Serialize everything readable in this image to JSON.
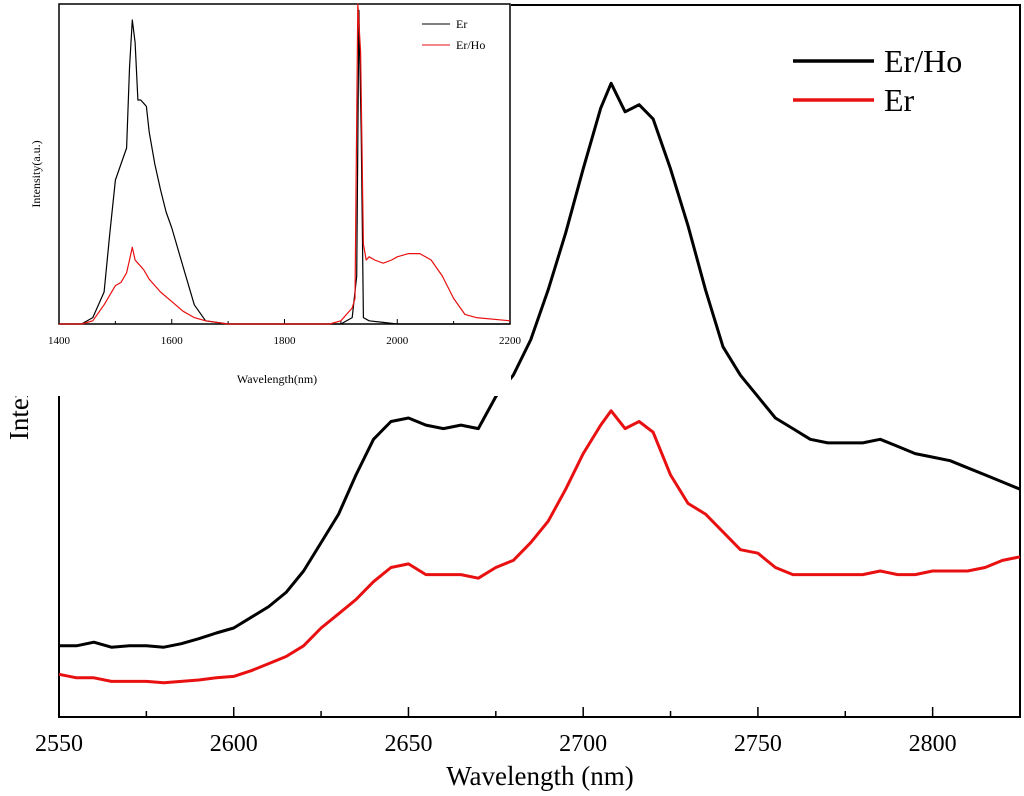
{
  "chart_data": [
    {
      "type": "line",
      "title": "",
      "xlabel": "Wavelength (nm)",
      "ylabel": "Intensity (a.u.)",
      "xlim": [
        2550,
        2825
      ],
      "ylim": [
        0,
        1
      ],
      "xticks": [
        2550,
        2600,
        2650,
        2700,
        2750,
        2800
      ],
      "yticks": [],
      "grid": false,
      "legend": "top-right",
      "series": [
        {
          "name": "Er/Ho",
          "color": "#000000",
          "x": [
            2550,
            2555,
            2560,
            2565,
            2570,
            2575,
            2580,
            2585,
            2590,
            2595,
            2600,
            2605,
            2610,
            2615,
            2620,
            2625,
            2630,
            2635,
            2640,
            2645,
            2650,
            2655,
            2660,
            2665,
            2670,
            2675,
            2680,
            2685,
            2690,
            2695,
            2700,
            2705,
            2708,
            2712,
            2716,
            2720,
            2725,
            2730,
            2735,
            2740,
            2745,
            2750,
            2755,
            2760,
            2765,
            2770,
            2775,
            2780,
            2785,
            2790,
            2795,
            2800,
            2805,
            2810,
            2815,
            2820,
            2825
          ],
          "y": [
            0.1,
            0.1,
            0.105,
            0.098,
            0.1,
            0.1,
            0.098,
            0.103,
            0.11,
            0.118,
            0.125,
            0.14,
            0.155,
            0.175,
            0.205,
            0.245,
            0.285,
            0.34,
            0.39,
            0.415,
            0.42,
            0.41,
            0.405,
            0.41,
            0.405,
            0.45,
            0.48,
            0.53,
            0.6,
            0.68,
            0.77,
            0.855,
            0.89,
            0.85,
            0.86,
            0.84,
            0.77,
            0.69,
            0.6,
            0.52,
            0.48,
            0.45,
            0.42,
            0.405,
            0.39,
            0.385,
            0.385,
            0.385,
            0.39,
            0.38,
            0.37,
            0.365,
            0.36,
            0.35,
            0.34,
            0.33,
            0.32
          ]
        },
        {
          "name": "Er",
          "color": "#e81010",
          "x": [
            2550,
            2555,
            2560,
            2565,
            2570,
            2575,
            2580,
            2585,
            2590,
            2595,
            2600,
            2605,
            2610,
            2615,
            2620,
            2625,
            2630,
            2635,
            2640,
            2645,
            2650,
            2655,
            2660,
            2665,
            2670,
            2675,
            2680,
            2685,
            2690,
            2695,
            2700,
            2705,
            2708,
            2712,
            2716,
            2720,
            2725,
            2730,
            2735,
            2740,
            2745,
            2750,
            2755,
            2760,
            2765,
            2770,
            2775,
            2780,
            2785,
            2790,
            2795,
            2800,
            2805,
            2810,
            2815,
            2820,
            2825
          ],
          "y": [
            0.06,
            0.055,
            0.055,
            0.05,
            0.05,
            0.05,
            0.048,
            0.05,
            0.052,
            0.055,
            0.057,
            0.065,
            0.075,
            0.085,
            0.1,
            0.125,
            0.145,
            0.165,
            0.19,
            0.21,
            0.215,
            0.2,
            0.2,
            0.2,
            0.195,
            0.21,
            0.22,
            0.245,
            0.275,
            0.32,
            0.37,
            0.41,
            0.43,
            0.405,
            0.415,
            0.4,
            0.34,
            0.3,
            0.285,
            0.26,
            0.235,
            0.23,
            0.21,
            0.2,
            0.2,
            0.2,
            0.2,
            0.2,
            0.205,
            0.2,
            0.2,
            0.205,
            0.205,
            0.205,
            0.21,
            0.22,
            0.225
          ]
        }
      ]
    },
    {
      "type": "line",
      "title": "",
      "xlabel": "Wavelength(nm)",
      "ylabel": "Intensity(a.u.)",
      "xlim": [
        1400,
        2200
      ],
      "ylim": [
        0,
        1
      ],
      "xticks": [
        1400,
        1600,
        1800,
        2000,
        2200
      ],
      "yticks": [],
      "grid": false,
      "legend": "top-right",
      "series": [
        {
          "name": "Er",
          "color": "#000000",
          "x": [
            1400,
            1440,
            1460,
            1480,
            1490,
            1500,
            1510,
            1520,
            1525,
            1530,
            1535,
            1540,
            1545,
            1550,
            1555,
            1560,
            1570,
            1580,
            1590,
            1600,
            1620,
            1640,
            1660,
            1700,
            1800,
            1900,
            1920,
            1928,
            1932,
            1936,
            1940,
            1950,
            2000,
            2100,
            2200
          ],
          "y": [
            0.0,
            0.0,
            0.02,
            0.1,
            0.28,
            0.45,
            0.5,
            0.55,
            0.8,
            0.95,
            0.88,
            0.7,
            0.7,
            0.69,
            0.68,
            0.6,
            0.5,
            0.42,
            0.35,
            0.3,
            0.18,
            0.06,
            0.01,
            0.0,
            0.0,
            0.0,
            0.02,
            0.15,
            0.98,
            0.6,
            0.02,
            0.01,
            0.0,
            0.0,
            0.0
          ]
        },
        {
          "name": "Er/Ho",
          "color": "#e81010",
          "x": [
            1400,
            1440,
            1460,
            1480,
            1500,
            1510,
            1520,
            1525,
            1530,
            1535,
            1540,
            1550,
            1560,
            1580,
            1600,
            1620,
            1640,
            1660,
            1700,
            1800,
            1880,
            1900,
            1910,
            1920,
            1925,
            1930,
            1935,
            1940,
            1945,
            1950,
            1960,
            1975,
            1990,
            2000,
            2020,
            2040,
            2060,
            2080,
            2100,
            2120,
            2140,
            2200
          ],
          "y": [
            0.0,
            0.0,
            0.01,
            0.06,
            0.12,
            0.13,
            0.16,
            0.2,
            0.24,
            0.2,
            0.19,
            0.17,
            0.14,
            0.1,
            0.07,
            0.04,
            0.02,
            0.01,
            0.0,
            0.0,
            0.0,
            0.01,
            0.03,
            0.05,
            0.08,
            1.0,
            0.85,
            0.25,
            0.2,
            0.21,
            0.2,
            0.19,
            0.2,
            0.21,
            0.22,
            0.22,
            0.2,
            0.15,
            0.08,
            0.03,
            0.02,
            0.01
          ]
        }
      ]
    }
  ]
}
